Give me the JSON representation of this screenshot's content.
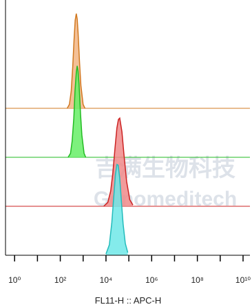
{
  "chart_data": {
    "type": "histogram-overlay",
    "xlabel": "FL11-H :: APC-H",
    "watermark": [
      "吉满生物科技",
      "Genomeditech"
    ],
    "xscale": "log",
    "xlim": [
      0.4,
      20000000000
    ],
    "xticks": [
      {
        "value": 1,
        "label": "10⁰"
      },
      {
        "value": 100,
        "label": "10²"
      },
      {
        "value": 10000,
        "label": "10⁴"
      },
      {
        "value": 1000000,
        "label": "10⁶"
      },
      {
        "value": 100000000,
        "label": "10⁸"
      },
      {
        "value": 10000000000,
        "label": "10¹⁰"
      }
    ],
    "xminor_ticks": [
      10,
      1000,
      100000,
      10000000,
      1000000000
    ],
    "ylim": [
      0,
      150
    ],
    "series": [
      {
        "name": null,
        "color": "#d07820",
        "fill": "#f2b584",
        "x": [
          200,
          250,
          300,
          350,
          400,
          450,
          500,
          550,
          600,
          700,
          800,
          1000,
          1200
        ],
        "values": [
          0,
          6,
          26,
          63,
          104,
          135,
          145,
          137,
          116,
          69,
          35,
          6,
          0
        ]
      },
      {
        "name": null,
        "color": "#22bb22",
        "fill": "#66ee66",
        "x": [
          220,
          280,
          330,
          390,
          440,
          500,
          550,
          600,
          660,
          770,
          880,
          1100,
          1300
        ],
        "values": [
          0,
          6,
          25,
          60,
          101,
          130,
          140,
          132,
          112,
          66,
          34,
          6,
          0
        ]
      },
      {
        "name": null,
        "color": "#cc2222",
        "fill": "#f08a8a",
        "x": [
          8000,
          12000,
          16000,
          20000,
          25000,
          30000,
          35000,
          40000,
          50000,
          60000,
          80000,
          110000,
          150000
        ],
        "values": [
          0,
          6,
          23,
          51,
          90,
          120,
          133,
          135,
          114,
          83,
          38,
          10,
          2
        ]
      },
      {
        "name": null,
        "color": "#22bbbb",
        "fill": "#6ee8e8",
        "x": [
          10000,
          14000,
          18000,
          22000,
          26000,
          30000,
          34000,
          40000,
          48000,
          56000,
          70000,
          90000
        ],
        "values": [
          2,
          16,
          50,
          91,
          124,
          139,
          138,
          118,
          80,
          48,
          18,
          4
        ]
      }
    ]
  }
}
